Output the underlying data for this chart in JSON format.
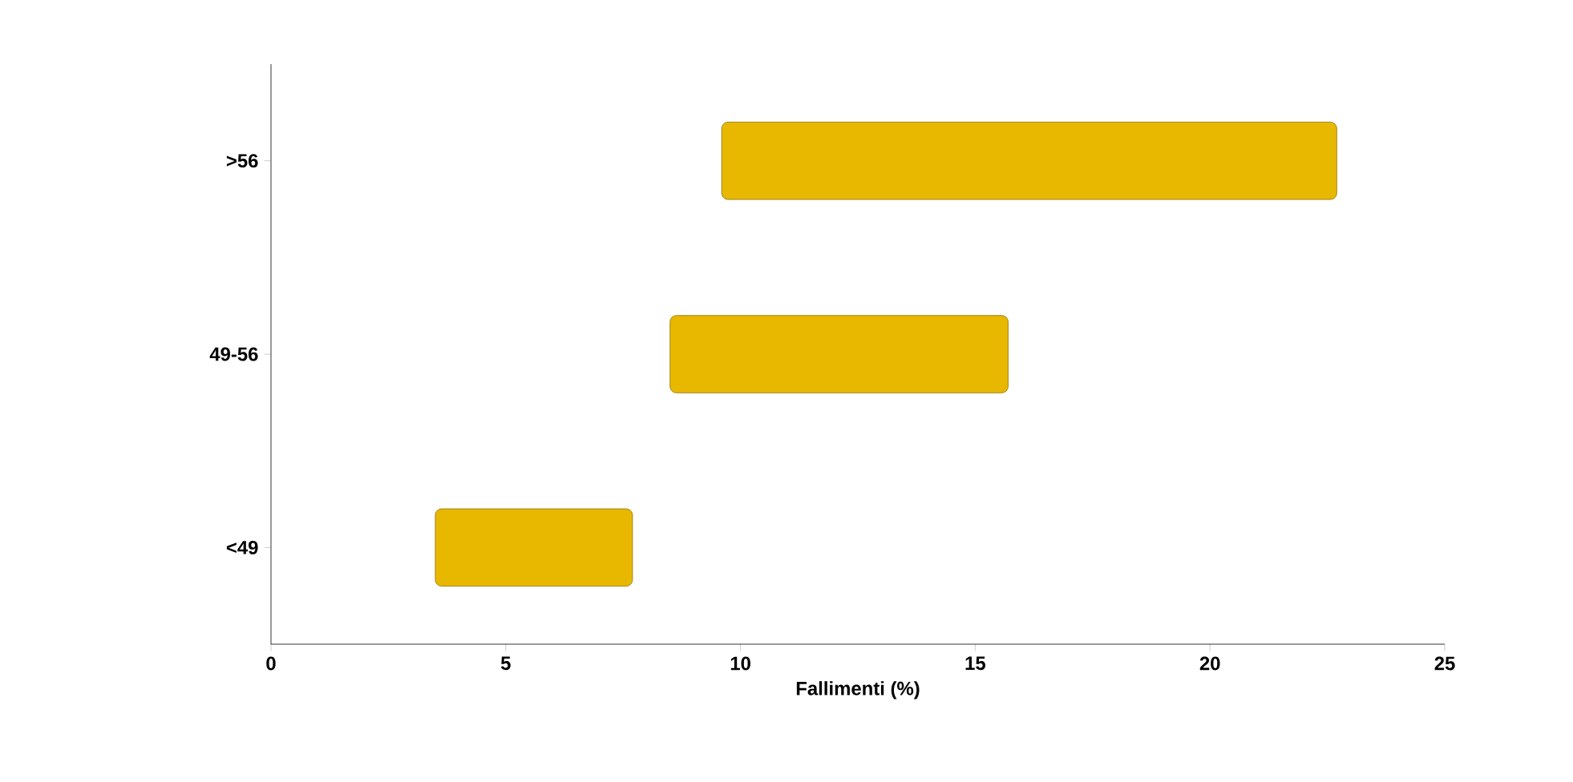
{
  "chart_data": {
    "type": "bar",
    "orientation": "horizontal",
    "xlabel": "Fallimenti (%)",
    "categories": [
      ">56",
      "49-56",
      "<49"
    ],
    "base": [
      9.6,
      8.5,
      3.5
    ],
    "values": [
      13.1,
      7.2,
      4.2
    ],
    "color": "#e8b800",
    "xlim": [
      0,
      25
    ],
    "xticks": [
      0,
      5,
      10,
      15,
      20,
      25
    ],
    "grid": false
  }
}
